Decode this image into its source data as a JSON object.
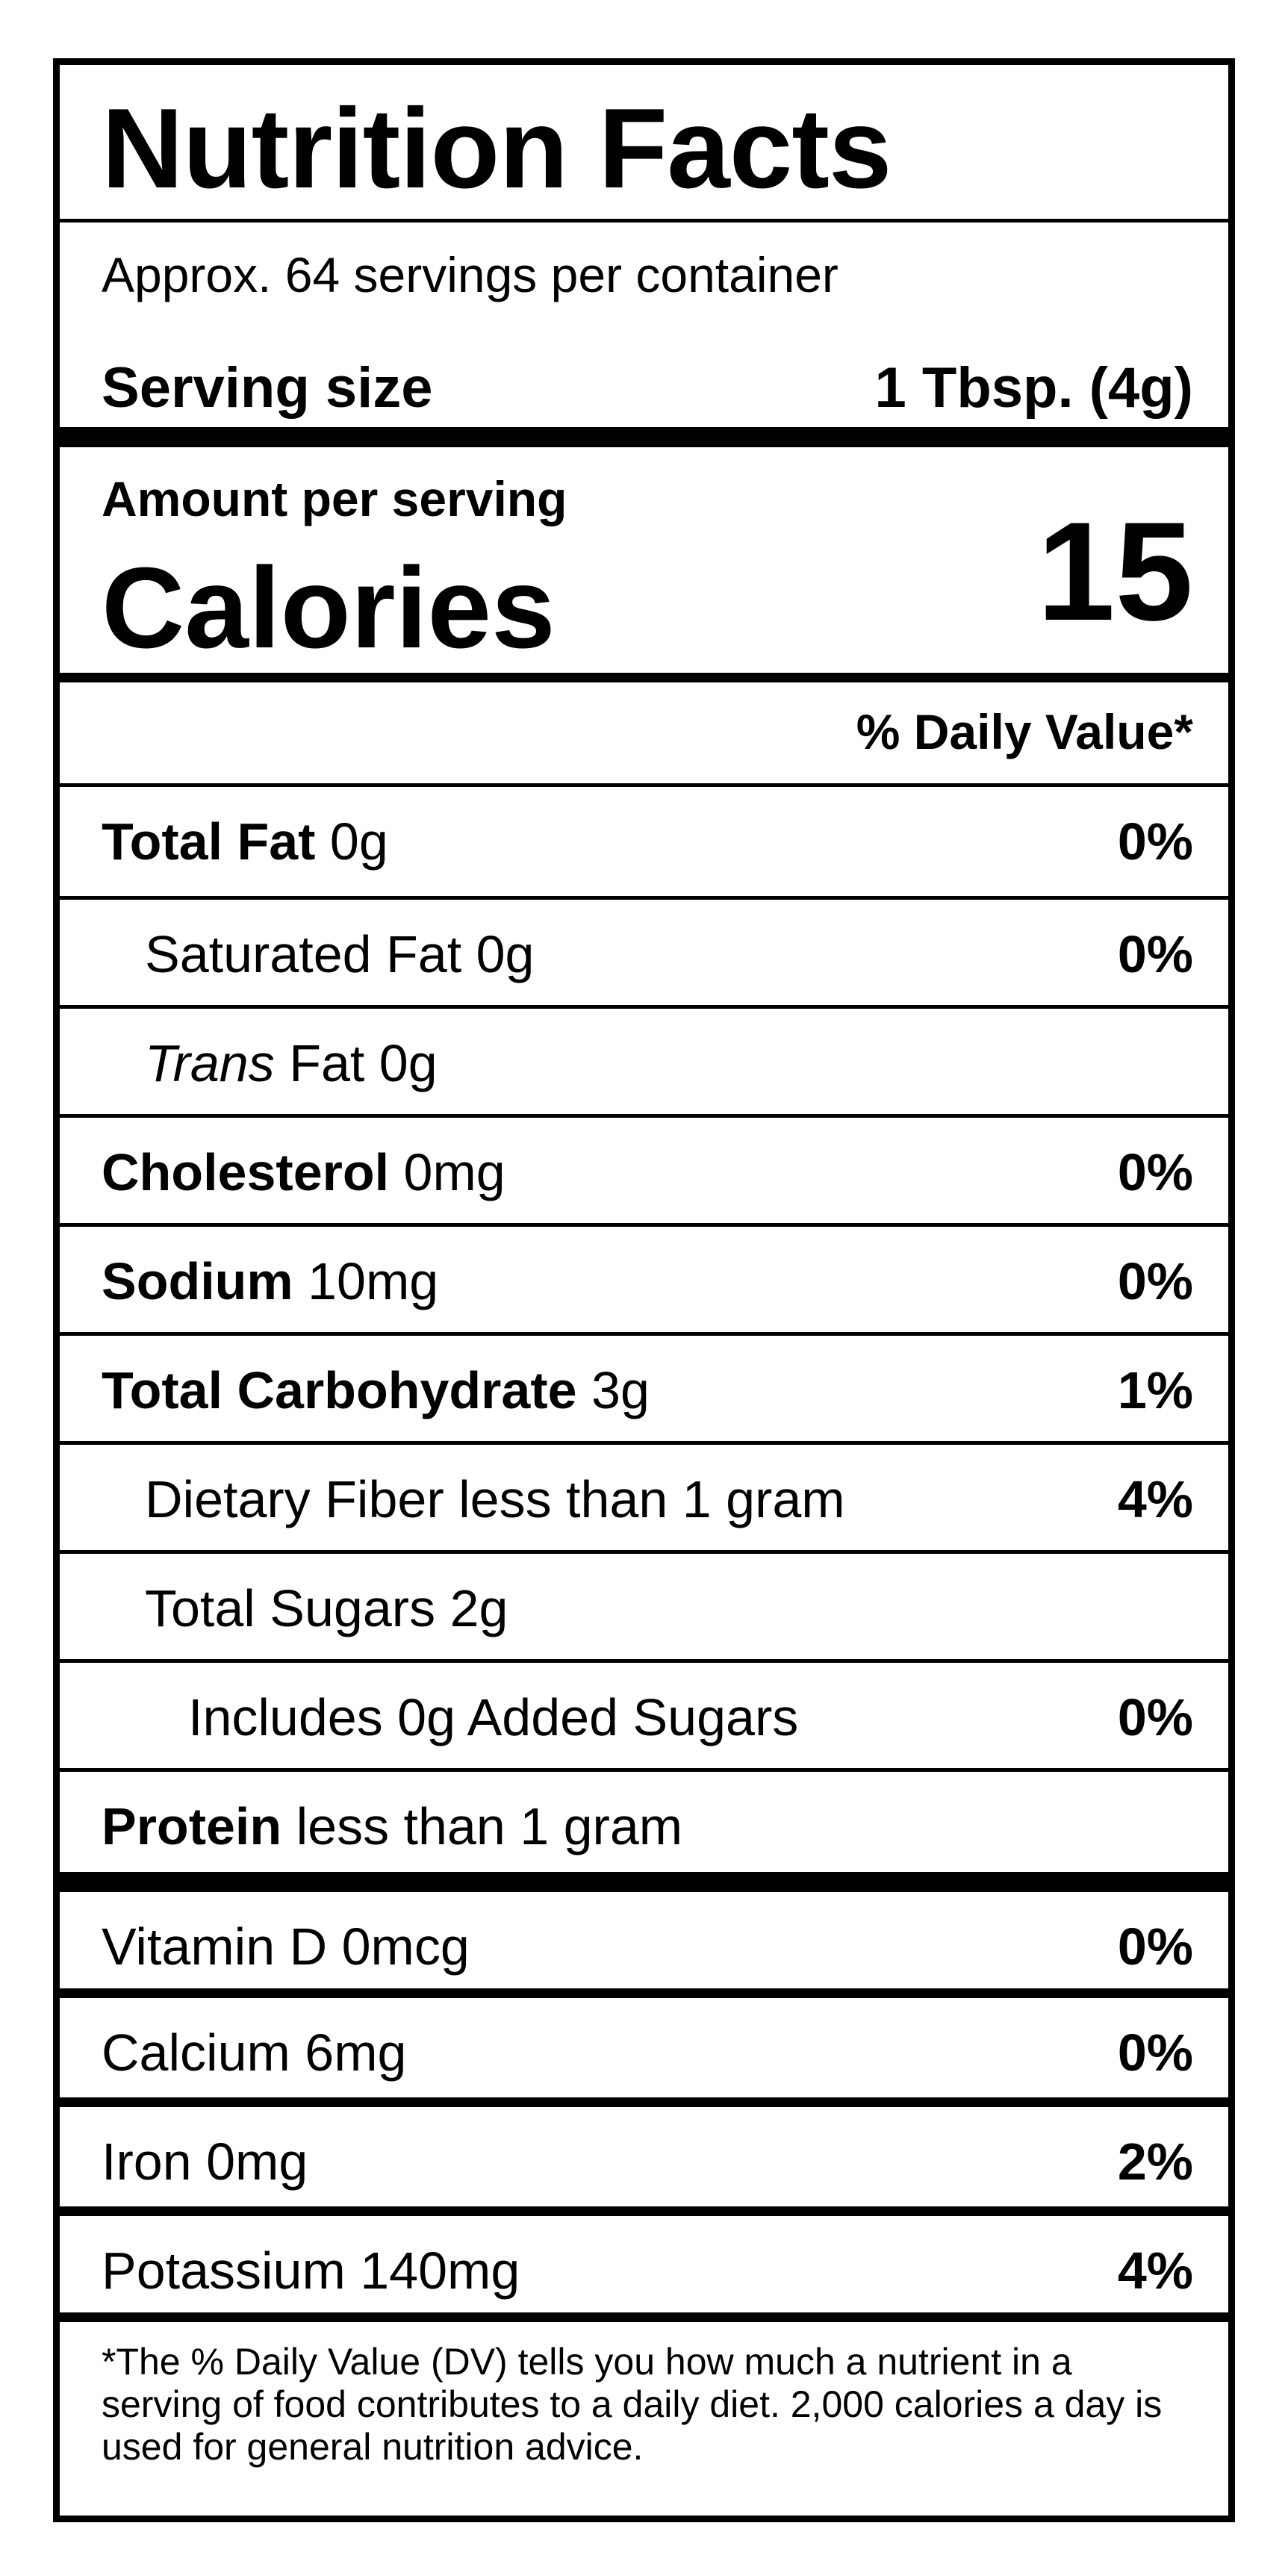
{
  "label": {
    "title": "Nutrition Facts",
    "servings_per_container": "Approx. 64 servings per container",
    "serving_size_label": "Serving size",
    "serving_size_value": "1 Tbsp. (4g)",
    "amount_per_serving": "Amount per serving",
    "calories_label": "Calories",
    "calories_value": "15",
    "daily_value_header": "% Daily Value*",
    "nutrients": [
      {
        "name": "Total Fat",
        "amount": "0g",
        "pct": "0%"
      },
      {
        "name": "Saturated Fat",
        "amount": "0g",
        "pct": "0%"
      },
      {
        "name": "Trans",
        "suffix": "Fat",
        "amount": "0g",
        "pct": ""
      },
      {
        "name": "Cholesterol",
        "amount": "0mg",
        "pct": "0%"
      },
      {
        "name": "Sodium",
        "amount": "10mg",
        "pct": "0%"
      },
      {
        "name": "Total Carbohydrate",
        "amount": "3g",
        "pct": "1%"
      },
      {
        "name": "Dietary Fiber less than 1 gram",
        "amount": "",
        "pct": "4%"
      },
      {
        "name": "Total Sugars",
        "amount": "2g",
        "pct": ""
      },
      {
        "name": "Includes 0g Added Sugars",
        "amount": "",
        "pct": "0%"
      },
      {
        "name": "Protein",
        "amount": "less than 1 gram",
        "pct": ""
      }
    ],
    "vitamins": [
      {
        "name": "Vitamin D",
        "amount": "0mcg",
        "pct": "0%"
      },
      {
        "name": "Calcium",
        "amount": "6mg",
        "pct": "0%"
      },
      {
        "name": "Iron",
        "amount": "0mg",
        "pct": "2%"
      },
      {
        "name": "Potassium",
        "amount": "140mg",
        "pct": "4%"
      }
    ],
    "footnote": "*The % Daily Value (DV) tells you how much a nutrient in a serving of food contributes to a daily diet. 2,000 calories a day is used for general nutrition advice."
  }
}
